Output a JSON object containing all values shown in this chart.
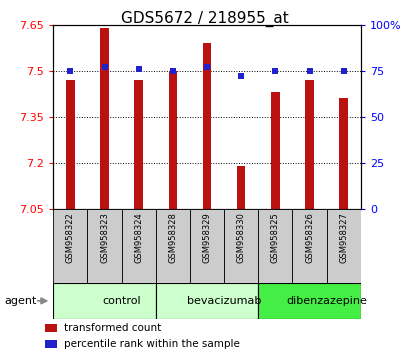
{
  "title": "GDS5672 / 218955_at",
  "samples": [
    "GSM958322",
    "GSM958323",
    "GSM958324",
    "GSM958328",
    "GSM958329",
    "GSM958330",
    "GSM958325",
    "GSM958326",
    "GSM958327"
  ],
  "bar_values": [
    7.47,
    7.64,
    7.47,
    7.5,
    7.59,
    7.19,
    7.43,
    7.47,
    7.41
  ],
  "percentile_values": [
    75,
    77,
    76,
    75,
    77,
    72,
    75,
    75,
    75
  ],
  "bar_color": "#bb1111",
  "dot_color": "#2222cc",
  "ymin": 7.05,
  "ymax": 7.65,
  "y2min": 0,
  "y2max": 100,
  "yticks": [
    7.05,
    7.2,
    7.35,
    7.5,
    7.65
  ],
  "y2ticks": [
    0,
    25,
    50,
    75,
    100
  ],
  "y2ticklabels": [
    "0",
    "25",
    "50",
    "75",
    "100%"
  ],
  "group_defs": [
    [
      0,
      3,
      "control",
      "#ccffcc"
    ],
    [
      3,
      6,
      "bevacizumab",
      "#ccffcc"
    ],
    [
      6,
      9,
      "dibenzazepine",
      "#44ee44"
    ]
  ],
  "agent_label": "agent",
  "legend_bar_label": "transformed count",
  "legend_dot_label": "percentile rank within the sample",
  "title_fontsize": 11,
  "bar_width": 0.25,
  "sample_box_color": "#cccccc",
  "background_color": "#ffffff"
}
